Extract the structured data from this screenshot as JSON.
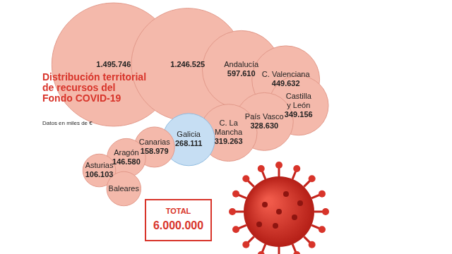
{
  "chart_data": {
    "type": "bubble",
    "title": "Distribución territorial de recursos del Fondo COVID-19",
    "subtitle": "Datos en miles de €",
    "categories": [
      null,
      null,
      "Andalucía",
      "C. Valenciana",
      "Castilla y León",
      "País Vasco",
      "C. La Mancha",
      "Galicia",
      "Canarias",
      "Aragón",
      "Asturias",
      "Baleares"
    ],
    "values": [
      1495746,
      1246525,
      597610,
      449632,
      349156,
      328630,
      319263,
      268111,
      158979,
      146580,
      106103,
      115000
    ],
    "value_labels": [
      "1.495.746",
      "1.246.525",
      "597.610",
      "449.632",
      "349.156",
      "328.630",
      "319.263",
      "268.111",
      "158.979",
      "146.580",
      "106.103",
      null
    ],
    "colors": [
      "#f4b9ab",
      "#f4b9ab",
      "#f4b9ab",
      "#f4b9ab",
      "#f4b9ab",
      "#f4b9ab",
      "#f4b9ab",
      "#c6def3",
      "#f4b9ab",
      "#f4b9ab",
      "#f4b9ab",
      "#f4b9ab"
    ],
    "data_labels": true,
    "tick_labels": false,
    "grid": false,
    "annotations": [
      {
        "text": "TOTAL",
        "value": 6000000,
        "value_label": "6.000.000"
      }
    ]
  }
}
